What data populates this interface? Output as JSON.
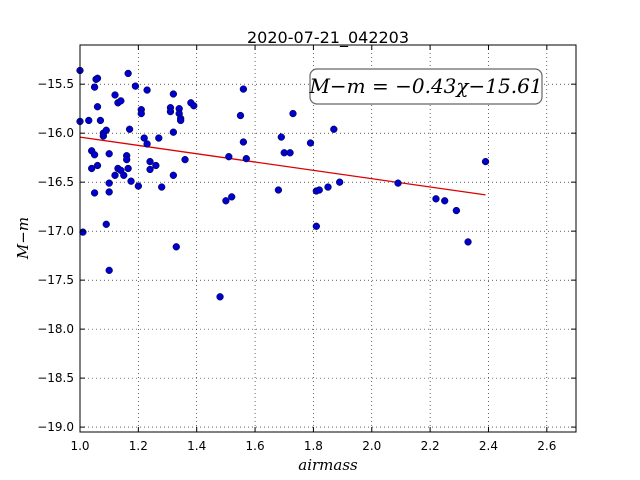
{
  "chart_data": {
    "type": "scatter",
    "title": "2020-07-21_042203",
    "xlabel": "airmass",
    "ylabel": "M−m",
    "xlim": [
      1.0,
      2.7
    ],
    "ylim": [
      -19.05,
      -15.1
    ],
    "y_inverted": true,
    "grid": true,
    "x_ticks": [
      1.0,
      1.2,
      1.4,
      1.6,
      1.8,
      2.0,
      2.2,
      2.4,
      2.6
    ],
    "x_tick_labels": [
      "1.0",
      "1.2",
      "1.4",
      "1.6",
      "1.8",
      "2.0",
      "2.2",
      "2.4",
      "2.6"
    ],
    "y_ticks": [
      -15.5,
      -16.0,
      -16.5,
      -17.0,
      -17.5,
      -18.0,
      -18.5,
      -19.0
    ],
    "y_tick_labels": [
      "−15.5",
      "−16.0",
      "−16.5",
      "−17.0",
      "−17.5",
      "−18.0",
      "−18.5",
      "−19.0"
    ],
    "annotation": "M−m = −0.43χ−15.61",
    "point_color": "#0000cc",
    "fit_color": "#dd0000",
    "points": [
      [
        1.0,
        -15.36
      ],
      [
        1.0,
        -15.88
      ],
      [
        1.01,
        -17.01
      ],
      [
        1.03,
        -15.87
      ],
      [
        1.04,
        -16.18
      ],
      [
        1.04,
        -16.36
      ],
      [
        1.05,
        -16.22
      ],
      [
        1.05,
        -15.53
      ],
      [
        1.055,
        -15.45
      ],
      [
        1.06,
        -15.44
      ],
      [
        1.05,
        -16.61
      ],
      [
        1.06,
        -16.33
      ],
      [
        1.06,
        -15.73
      ],
      [
        1.07,
        -15.87
      ],
      [
        1.08,
        -16.03
      ],
      [
        1.08,
        -16.0
      ],
      [
        1.09,
        -15.97
      ],
      [
        1.09,
        -16.93
      ],
      [
        1.1,
        -16.21
      ],
      [
        1.1,
        -16.51
      ],
      [
        1.1,
        -16.6
      ],
      [
        1.1,
        -17.4
      ],
      [
        1.12,
        -15.61
      ],
      [
        1.12,
        -16.43
      ],
      [
        1.13,
        -15.69
      ],
      [
        1.13,
        -16.36
      ],
      [
        1.14,
        -15.67
      ],
      [
        1.14,
        -16.38
      ],
      [
        1.15,
        -16.43
      ],
      [
        1.16,
        -16.23
      ],
      [
        1.16,
        -16.27
      ],
      [
        1.165,
        -16.36
      ],
      [
        1.165,
        -15.39
      ],
      [
        1.17,
        -15.96
      ],
      [
        1.175,
        -16.49
      ],
      [
        1.19,
        -15.52
      ],
      [
        1.2,
        -16.54
      ],
      [
        1.21,
        -15.76
      ],
      [
        1.21,
        -15.8
      ],
      [
        1.22,
        -16.05
      ],
      [
        1.23,
        -16.11
      ],
      [
        1.23,
        -15.56
      ],
      [
        1.24,
        -16.37
      ],
      [
        1.24,
        -16.29
      ],
      [
        1.26,
        -16.33
      ],
      [
        1.27,
        -16.05
      ],
      [
        1.28,
        -16.55
      ],
      [
        1.31,
        -15.74
      ],
      [
        1.31,
        -15.78
      ],
      [
        1.32,
        -16.43
      ],
      [
        1.32,
        -15.6
      ],
      [
        1.32,
        -15.99
      ],
      [
        1.33,
        -17.16
      ],
      [
        1.34,
        -15.75
      ],
      [
        1.34,
        -15.8
      ],
      [
        1.345,
        -15.85
      ],
      [
        1.345,
        -15.87
      ],
      [
        1.36,
        -16.27
      ],
      [
        1.38,
        -15.69
      ],
      [
        1.39,
        -15.72
      ],
      [
        1.48,
        -17.67
      ],
      [
        1.5,
        -16.69
      ],
      [
        1.51,
        -16.24
      ],
      [
        1.52,
        -16.65
      ],
      [
        1.55,
        -15.82
      ],
      [
        1.56,
        -15.55
      ],
      [
        1.56,
        -16.09
      ],
      [
        1.57,
        -16.26
      ],
      [
        1.68,
        -16.58
      ],
      [
        1.69,
        -16.04
      ],
      [
        1.7,
        -16.2
      ],
      [
        1.72,
        -16.2
      ],
      [
        1.73,
        -15.8
      ],
      [
        1.79,
        -16.1
      ],
      [
        1.81,
        -16.59
      ],
      [
        1.81,
        -16.95
      ],
      [
        1.82,
        -16.58
      ],
      [
        1.85,
        -16.55
      ],
      [
        1.87,
        -15.96
      ],
      [
        1.89,
        -16.5
      ],
      [
        2.09,
        -16.51
      ],
      [
        2.22,
        -16.67
      ],
      [
        2.25,
        -16.69
      ],
      [
        2.29,
        -16.79
      ],
      [
        2.33,
        -17.11
      ],
      [
        2.39,
        -16.29
      ]
    ],
    "fit_line": [
      [
        1.0,
        -16.04
      ],
      [
        2.39,
        -16.63
      ]
    ]
  }
}
